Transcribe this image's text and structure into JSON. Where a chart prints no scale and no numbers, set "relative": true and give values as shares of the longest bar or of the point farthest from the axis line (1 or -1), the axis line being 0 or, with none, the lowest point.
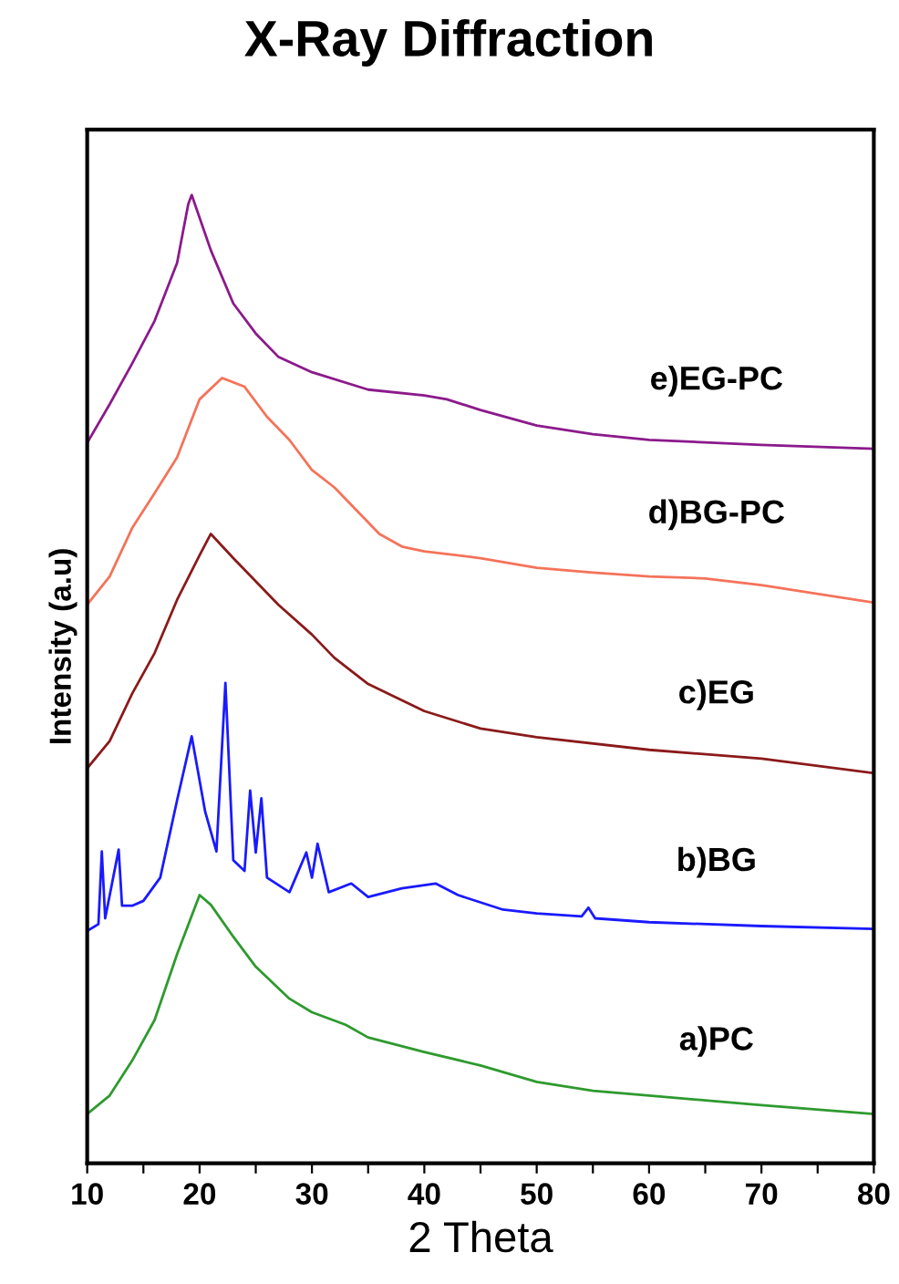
{
  "chart_data": {
    "type": "line",
    "title": "X-Ray Diffraction",
    "xlabel": "2 Theta",
    "ylabel": "Intensity (a.u)",
    "relative": true,
    "xlim": [
      10,
      80
    ],
    "xticks": [
      10,
      {
        "value": 15,
        "label": null
      },
      20,
      {
        "value": 25,
        "label": null
      },
      30,
      {
        "value": 35,
        "label": null
      },
      40,
      {
        "value": 45,
        "label": null
      },
      50,
      {
        "value": 55,
        "label": null
      },
      60,
      {
        "value": 65,
        "label": null
      },
      70,
      {
        "value": 75,
        "label": null
      },
      80
    ],
    "grid": false,
    "legend": false,
    "marker": "none",
    "line_style": "solid",
    "series": [
      {
        "name": "a)PC",
        "color": "#2e9a2e",
        "x": [
          10,
          12,
          14,
          16,
          18,
          20,
          21,
          23,
          25,
          28,
          30,
          33,
          35,
          40,
          45,
          50,
          55,
          60,
          70,
          80
        ],
        "values": [
          0.051,
          0.07,
          0.106,
          0.148,
          0.216,
          0.277,
          0.267,
          0.234,
          0.203,
          0.17,
          0.156,
          0.143,
          0.13,
          0.115,
          0.101,
          0.084,
          0.075,
          0.07,
          0.06,
          0.051
        ]
      },
      {
        "name": "b)BG",
        "color": "#1a1aff",
        "x": [
          10,
          11,
          11.3,
          11.6,
          12.8,
          13.1,
          14,
          15,
          16.5,
          18,
          19.3,
          20.5,
          21.5,
          22.3,
          23,
          24,
          24.5,
          25,
          25.5,
          26,
          28,
          29.5,
          30,
          30.5,
          31.5,
          33.5,
          35,
          38,
          41,
          43,
          47,
          50,
          54,
          54.6,
          55.2,
          60,
          70,
          80
        ],
        "values": [
          0.24,
          0.247,
          0.322,
          0.253,
          0.324,
          0.266,
          0.266,
          0.271,
          0.295,
          0.375,
          0.441,
          0.363,
          0.322,
          0.496,
          0.313,
          0.302,
          0.385,
          0.321,
          0.377,
          0.295,
          0.28,
          0.321,
          0.295,
          0.33,
          0.28,
          0.289,
          0.275,
          0.284,
          0.289,
          0.277,
          0.262,
          0.258,
          0.255,
          0.264,
          0.253,
          0.249,
          0.245,
          0.242
        ]
      },
      {
        "name": "c)EG",
        "color": "#8b1a1a",
        "x": [
          10,
          12,
          14,
          16,
          18,
          20,
          21,
          23,
          25,
          27,
          30,
          32,
          35,
          40,
          45,
          50,
          60,
          70,
          80
        ],
        "values": [
          0.408,
          0.436,
          0.485,
          0.527,
          0.582,
          0.628,
          0.65,
          0.625,
          0.601,
          0.577,
          0.546,
          0.522,
          0.495,
          0.467,
          0.449,
          0.44,
          0.427,
          0.418,
          0.403
        ]
      },
      {
        "name": "d)BG-PC",
        "color": "#f4735a",
        "x": [
          10,
          12,
          14,
          16,
          18,
          20,
          22,
          24,
          26,
          28,
          30,
          32,
          34,
          36,
          38,
          40,
          45,
          50,
          55,
          60,
          65,
          70,
          80
        ],
        "values": [
          0.577,
          0.606,
          0.656,
          0.692,
          0.729,
          0.789,
          0.811,
          0.802,
          0.771,
          0.747,
          0.716,
          0.698,
          0.674,
          0.65,
          0.637,
          0.632,
          0.625,
          0.615,
          0.61,
          0.606,
          0.604,
          0.597,
          0.579
        ]
      },
      {
        "name": "e)EG-PC",
        "color": "#8b1a8b",
        "x": [
          10,
          12,
          14,
          16,
          18,
          19,
          19.3,
          21,
          23,
          25,
          27,
          30,
          35,
          40,
          42,
          45,
          50,
          55,
          60,
          70,
          80
        ],
        "values": [
          0.744,
          0.784,
          0.826,
          0.87,
          0.93,
          0.991,
          1.0,
          0.943,
          0.888,
          0.857,
          0.833,
          0.817,
          0.799,
          0.793,
          0.789,
          0.778,
          0.762,
          0.753,
          0.747,
          0.742,
          0.738
        ]
      }
    ]
  }
}
